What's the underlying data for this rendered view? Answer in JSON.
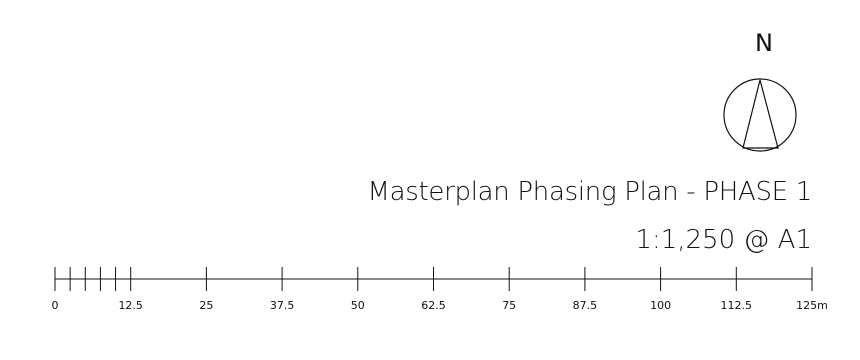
{
  "north_arrow": {
    "letter": "N",
    "icon": "north-arrow-icon"
  },
  "title": "Masterplan Phasing Plan - PHASE 1",
  "scale": "1:1,250 @ A1",
  "scale_bar": {
    "unit": "m",
    "start": 0,
    "end": 125,
    "major_step": 12.5,
    "minor_step": 2.5,
    "labels": [
      "0",
      "12.5",
      "25",
      "37.5",
      "50",
      "62.5",
      "75",
      "87.5",
      "100",
      "112.5",
      "125m"
    ]
  }
}
